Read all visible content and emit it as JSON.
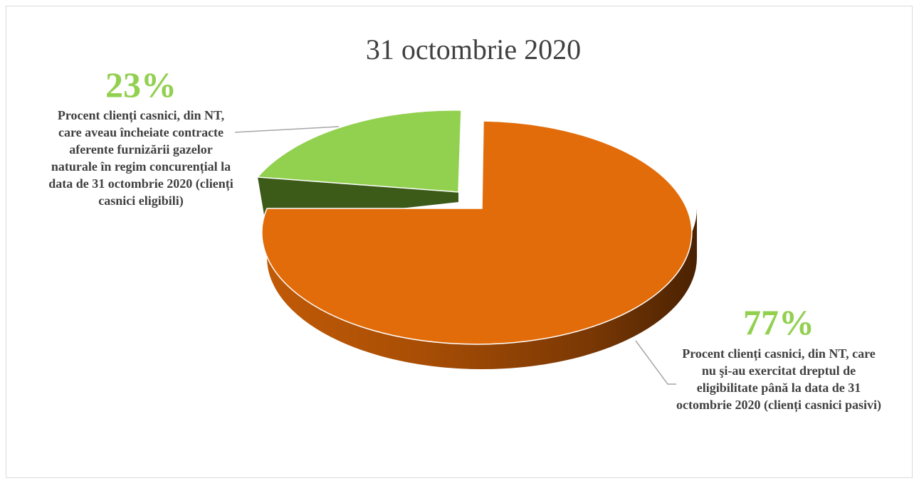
{
  "chart_data": {
    "type": "pie",
    "title": "31 octombrie 2020",
    "slices": [
      {
        "name": "Procent clienți casnici, din NT, care aveau încheiate contracte aferente furnizării gazelor naturale în regim concurențial  la data de 31 octombrie 2020 (clienți casnici eligibili)",
        "value": 23,
        "label": "23%",
        "color": "#92d050"
      },
      {
        "name": "Procent clienți casnici, din NT, care nu şi-au exercitat dreptul de eligibilitate până la data de 31 octombrie 2020 (clienți casnici pasivi)",
        "value": 77,
        "label": "77%",
        "color": "#e36c0a"
      }
    ],
    "style": "3d-pie-exploded",
    "legend": "none"
  }
}
